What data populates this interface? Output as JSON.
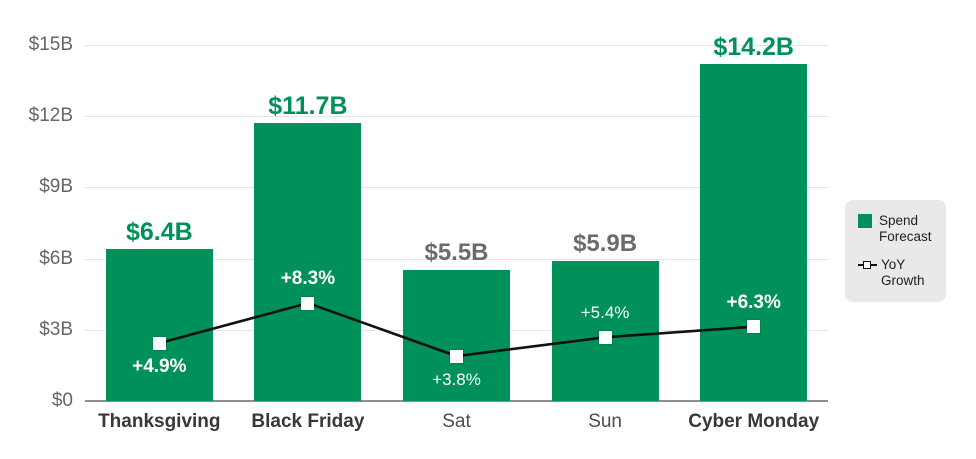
{
  "colors": {
    "bar_green": "#00915a",
    "value_label_green": "#00915a",
    "value_label_gray": "#6b6b6b",
    "grid": "#e4e4e4",
    "axis_baseline": "#8f8f8f",
    "y_tick_text": "#666666",
    "x_tick_text_strong": "#383838",
    "x_tick_text": "#4c4c4c",
    "line": "#121212",
    "marker_fill": "#ffffff",
    "growth_text": "#ffffff",
    "legend_bg": "#e9e9e9",
    "legend_text": "#1f1f1f"
  },
  "chart_data": {
    "type": "bar",
    "subtype": "combo-bar-line",
    "title": "",
    "categories": [
      "Thanksgiving",
      "Black Friday",
      "Sat",
      "Sun",
      "Cyber Monday"
    ],
    "category_emphasis": [
      true,
      true,
      false,
      false,
      true
    ],
    "series": [
      {
        "name": "Spend Forecast",
        "type": "bar",
        "unit": "$B",
        "values": [
          6.4,
          11.7,
          5.5,
          5.9,
          14.2
        ],
        "labels": [
          "$6.4B",
          "$11.7B",
          "$5.5B",
          "$5.9B",
          "$14.2B"
        ],
        "label_style": [
          "green",
          "green",
          "gray",
          "gray",
          "green"
        ]
      },
      {
        "name": "YoY Growth",
        "type": "line",
        "unit": "%",
        "values": [
          4.9,
          8.3,
          3.8,
          5.4,
          6.3
        ],
        "labels": [
          "+4.9%",
          "+8.3%",
          "+3.8%",
          "+5.4%",
          "+6.3%"
        ],
        "label_bold": [
          true,
          true,
          false,
          false,
          true
        ],
        "label_position": [
          "below",
          "above",
          "below",
          "above",
          "above"
        ],
        "marker": "white-square"
      }
    ],
    "y_axis": {
      "min": 0,
      "max": 15,
      "tick_step": 3,
      "tick_labels": [
        "$0",
        "$3B",
        "$6B",
        "$9B",
        "$12B",
        "$15B"
      ]
    },
    "grid": true,
    "legend": {
      "position": "right",
      "items": [
        {
          "swatch": "green-square",
          "label": "Spend\nForecast"
        },
        {
          "swatch": "line-marker",
          "label": "YoY\nGrowth"
        }
      ]
    }
  }
}
